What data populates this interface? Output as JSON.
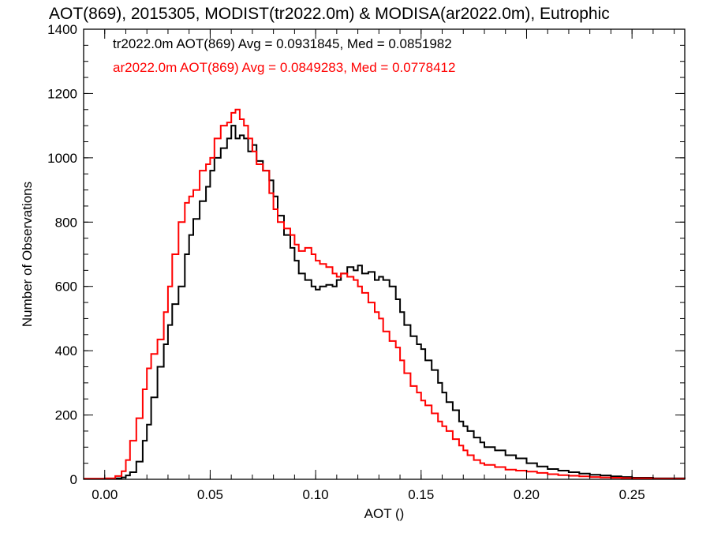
{
  "chart_data": {
    "type": "line",
    "title": "AOT(869), 2015305, MODIST(tr2022.0m) & MODISA(ar2022.0m), Eutrophic",
    "xlabel": "AOT ()",
    "ylabel": "Number of Observations",
    "xlim": [
      -0.01,
      0.275
    ],
    "ylim": [
      0,
      1400
    ],
    "x_ticks": [
      0.0,
      0.05,
      0.1,
      0.15,
      0.2,
      0.25
    ],
    "x_tick_labels": [
      "0.00",
      "0.05",
      "0.10",
      "0.15",
      "0.20",
      "0.25"
    ],
    "y_ticks": [
      0,
      200,
      400,
      600,
      800,
      1000,
      1200,
      1400
    ],
    "y_tick_labels": [
      "0",
      "200",
      "400",
      "600",
      "800",
      "1000",
      "1200",
      "1400"
    ],
    "grid": false,
    "legend_position": "top-left",
    "series": [
      {
        "name": "tr2022.0m",
        "color": "#000000",
        "annotation": "tr2022.0m AOT(869) Avg = 0.0931845, Med = 0.0851982",
        "x": [
          -0.01,
          0.0,
          0.005,
          0.008,
          0.01,
          0.012,
          0.015,
          0.018,
          0.02,
          0.022,
          0.025,
          0.028,
          0.03,
          0.032,
          0.035,
          0.038,
          0.04,
          0.042,
          0.045,
          0.048,
          0.05,
          0.052,
          0.055,
          0.058,
          0.06,
          0.062,
          0.064,
          0.066,
          0.068,
          0.07,
          0.072,
          0.075,
          0.078,
          0.08,
          0.082,
          0.085,
          0.088,
          0.09,
          0.092,
          0.095,
          0.098,
          0.1,
          0.102,
          0.105,
          0.108,
          0.11,
          0.112,
          0.115,
          0.118,
          0.12,
          0.122,
          0.125,
          0.128,
          0.13,
          0.132,
          0.135,
          0.138,
          0.14,
          0.142,
          0.145,
          0.148,
          0.15,
          0.152,
          0.155,
          0.158,
          0.16,
          0.162,
          0.165,
          0.168,
          0.17,
          0.172,
          0.175,
          0.178,
          0.18,
          0.185,
          0.19,
          0.195,
          0.2,
          0.205,
          0.21,
          0.215,
          0.22,
          0.225,
          0.23,
          0.235,
          0.24,
          0.245,
          0.25,
          0.26,
          0.275
        ],
        "y": [
          2,
          2,
          3,
          6,
          12,
          22,
          55,
          120,
          170,
          255,
          350,
          420,
          480,
          545,
          600,
          700,
          760,
          810,
          865,
          910,
          960,
          1000,
          1030,
          1060,
          1100,
          1060,
          1070,
          1060,
          1020,
          1040,
          990,
          960,
          930,
          880,
          820,
          760,
          720,
          680,
          640,
          620,
          600,
          590,
          600,
          605,
          600,
          620,
          640,
          660,
          650,
          665,
          640,
          645,
          620,
          630,
          620,
          600,
          560,
          520,
          480,
          445,
          420,
          405,
          370,
          340,
          300,
          270,
          240,
          215,
          180,
          165,
          150,
          130,
          115,
          100,
          90,
          75,
          65,
          50,
          40,
          32,
          27,
          22,
          18,
          14,
          12,
          9,
          7,
          5,
          3,
          1
        ]
      },
      {
        "name": "ar2022.0m",
        "color": "#ff0000",
        "annotation": "ar2022.0m AOT(869) Avg = 0.0849283, Med = 0.0778412",
        "x": [
          -0.01,
          0.0,
          0.005,
          0.008,
          0.01,
          0.012,
          0.015,
          0.018,
          0.02,
          0.022,
          0.025,
          0.028,
          0.03,
          0.032,
          0.035,
          0.038,
          0.04,
          0.042,
          0.045,
          0.048,
          0.05,
          0.052,
          0.055,
          0.058,
          0.06,
          0.062,
          0.064,
          0.066,
          0.068,
          0.07,
          0.072,
          0.075,
          0.078,
          0.08,
          0.082,
          0.085,
          0.088,
          0.09,
          0.092,
          0.095,
          0.098,
          0.1,
          0.102,
          0.105,
          0.108,
          0.11,
          0.112,
          0.115,
          0.118,
          0.12,
          0.122,
          0.125,
          0.128,
          0.13,
          0.132,
          0.135,
          0.138,
          0.14,
          0.142,
          0.145,
          0.148,
          0.15,
          0.152,
          0.155,
          0.158,
          0.16,
          0.162,
          0.165,
          0.168,
          0.17,
          0.172,
          0.175,
          0.178,
          0.18,
          0.185,
          0.19,
          0.195,
          0.2,
          0.205,
          0.21,
          0.215,
          0.22,
          0.225,
          0.23,
          0.235,
          0.24,
          0.245,
          0.25,
          0.26,
          0.275
        ],
        "y": [
          2,
          3,
          10,
          25,
          60,
          120,
          190,
          280,
          345,
          390,
          435,
          520,
          600,
          700,
          800,
          860,
          880,
          900,
          960,
          980,
          1000,
          1060,
          1100,
          1110,
          1140,
          1150,
          1120,
          1100,
          1060,
          1020,
          980,
          960,
          890,
          840,
          800,
          780,
          760,
          730,
          710,
          720,
          700,
          680,
          670,
          660,
          640,
          630,
          640,
          630,
          620,
          600,
          580,
          550,
          520,
          500,
          460,
          430,
          410,
          370,
          330,
          290,
          270,
          245,
          230,
          205,
          180,
          165,
          150,
          125,
          105,
          90,
          75,
          60,
          50,
          45,
          38,
          30,
          27,
          24,
          20,
          16,
          13,
          11,
          9,
          7,
          6,
          5,
          4,
          3,
          2,
          1
        ]
      }
    ]
  }
}
